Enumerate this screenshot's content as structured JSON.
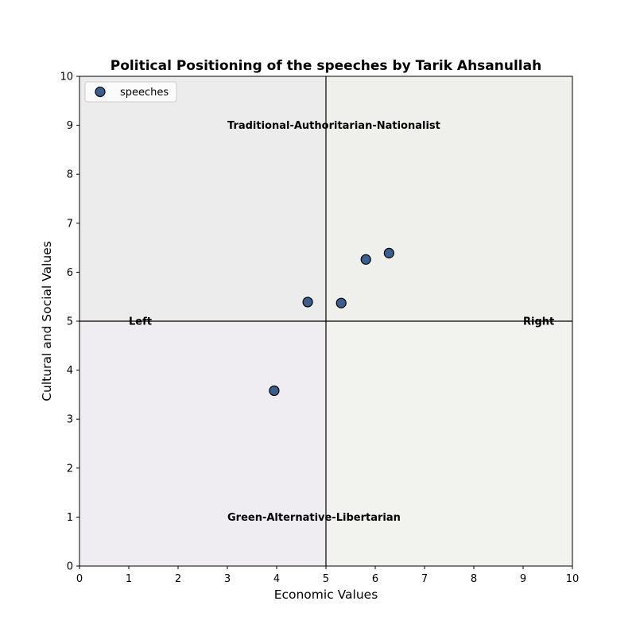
{
  "chart_data": {
    "type": "scatter",
    "title": "Political Positioning of the speeches by Tarik Ahsanullah",
    "xlabel": "Economic Values",
    "ylabel": "Cultural and Social Values",
    "xlim": [
      0,
      10
    ],
    "ylim": [
      0,
      10
    ],
    "xticks": [
      "0",
      "1",
      "2",
      "3",
      "4",
      "5",
      "6",
      "7",
      "8",
      "9",
      "10"
    ],
    "yticks": [
      "0",
      "1",
      "2",
      "3",
      "4",
      "5",
      "6",
      "7",
      "8",
      "9",
      "10"
    ],
    "grid": false,
    "legend_position": "top-left",
    "divider_x": 5,
    "divider_y": 5,
    "series": [
      {
        "name": "speeches",
        "color": "#3a5f8f",
        "points": [
          {
            "x": 3.95,
            "y": 3.58
          },
          {
            "x": 4.63,
            "y": 5.39
          },
          {
            "x": 5.31,
            "y": 5.37
          },
          {
            "x": 5.81,
            "y": 6.26
          },
          {
            "x": 6.28,
            "y": 6.39
          }
        ]
      }
    ],
    "quadrants": [
      {
        "name": "top-left",
        "color": "#ececec"
      },
      {
        "name": "top-right",
        "color": "#eff0ec"
      },
      {
        "name": "bottom-left",
        "color": "#efecf2"
      },
      {
        "name": "bottom-right",
        "color": "#f2f2ee"
      }
    ],
    "annotations": [
      {
        "text": "Traditional-Authoritarian-Nationalist",
        "x": 3.0,
        "y": 9.0,
        "anchor": "start"
      },
      {
        "text": "Green-Alternative-Libertarian",
        "x": 3.0,
        "y": 1.0,
        "anchor": "start"
      },
      {
        "text": "Left",
        "x": 1.0,
        "y": 5.0,
        "anchor": "start"
      },
      {
        "text": "Right",
        "x": 9.0,
        "y": 5.0,
        "anchor": "start"
      }
    ]
  }
}
